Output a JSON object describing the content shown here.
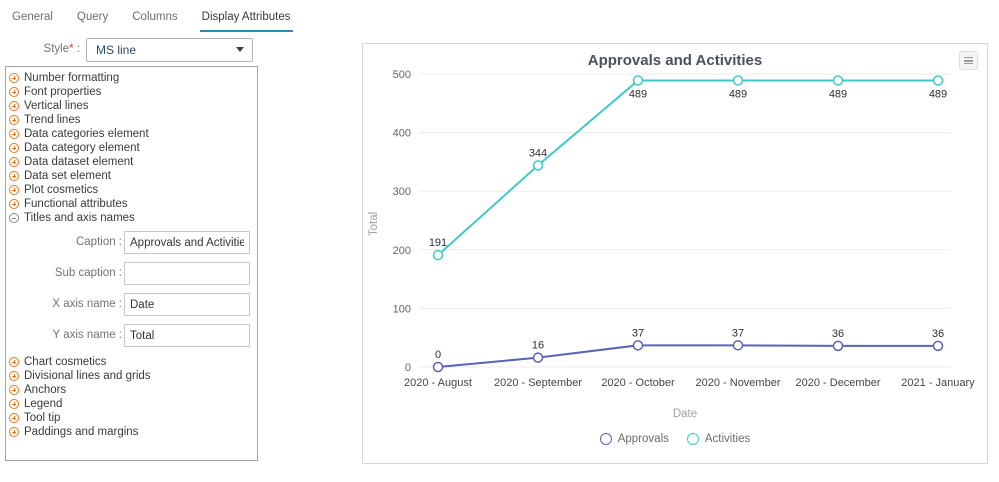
{
  "tabs": [
    {
      "label": "General",
      "active": false
    },
    {
      "label": "Query",
      "active": false
    },
    {
      "label": "Columns",
      "active": false
    },
    {
      "label": "Display Attributes",
      "active": true
    }
  ],
  "style_field": {
    "label": "Style",
    "required_mark": "*",
    "colon": ":",
    "value": "MS line"
  },
  "tree": {
    "items_above": [
      "Number formatting",
      "Font properties",
      "Vertical lines",
      "Trend lines",
      "Data categories element",
      "Data category element",
      "Data dataset element",
      "Data set element",
      "Plot cosmetics",
      "Functional attributes"
    ],
    "expanded_item": "Titles and axis names",
    "items_below": [
      "Chart cosmetics",
      "Divisional lines and grids",
      "Anchors",
      "Legend",
      "Tool tip",
      "Paddings and margins"
    ]
  },
  "form": {
    "caption": {
      "label": "Caption :",
      "value": "Approvals and Activities"
    },
    "sub_caption": {
      "label": "Sub caption :",
      "value": ""
    },
    "x_axis": {
      "label": "X axis name :",
      "value": "Date"
    },
    "y_axis": {
      "label": "Y axis name :",
      "value": "Total"
    }
  },
  "chart_data": {
    "type": "line",
    "title": "Approvals and Activities",
    "xlabel": "Date",
    "ylabel": "Total",
    "categories": [
      "2020 - August",
      "2020 - September",
      "2020 - October",
      "2020 - November",
      "2020 - December",
      "2021 - January"
    ],
    "series": [
      {
        "name": "Approvals",
        "color": "#5b63b7",
        "values": [
          0,
          16,
          37,
          37,
          36,
          36
        ]
      },
      {
        "name": "Activities",
        "color": "#3fc8ca",
        "values": [
          191,
          344,
          489,
          489,
          489,
          489
        ]
      }
    ],
    "ylim": [
      0,
      500
    ],
    "yticks": [
      0,
      100,
      200,
      300,
      400,
      500
    ],
    "grid": true,
    "legend_position": "bottom",
    "colors": {
      "gridline": "#ebebeb",
      "tick_label": "#5d6570",
      "data_label": "#2e2e38",
      "category_label": "#454545",
      "axis_title": "#9aa0a6"
    }
  }
}
